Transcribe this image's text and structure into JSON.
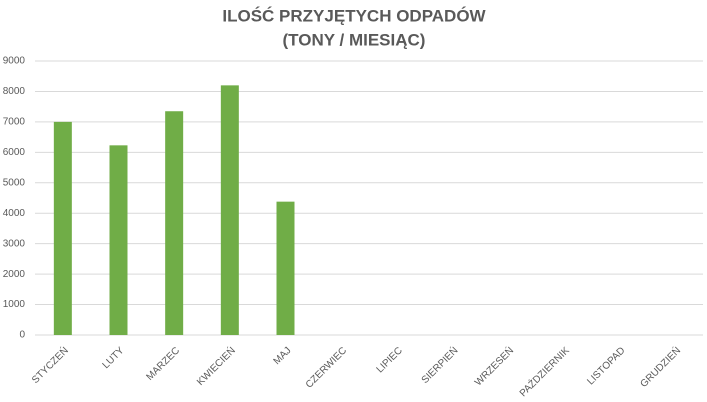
{
  "chart_data": {
    "type": "bar",
    "title": "ILOŚĆ PRZYJĘTYCH ODPADÓW",
    "subtitle": "(TONY / MIESIĄC)",
    "categories": [
      "STYCZEŃ",
      "LUTY",
      "MARZEC",
      "KWIECIEŃ",
      "MAJ",
      "CZERWIEC",
      "LIPIEC",
      "SIERPIEŃ",
      "WRZESEŃ",
      "PAŹDZIERNIK",
      "LISTOPAD",
      "GRUDZIEŃ"
    ],
    "values": [
      7000,
      6230,
      7350,
      8200,
      4380,
      null,
      null,
      null,
      null,
      null,
      null,
      null
    ],
    "color": "#70ad47",
    "ylim": [
      0,
      9000
    ],
    "yticks": [
      0,
      1000,
      2000,
      3000,
      4000,
      5000,
      6000,
      7000,
      8000,
      9000
    ],
    "grid": true
  }
}
